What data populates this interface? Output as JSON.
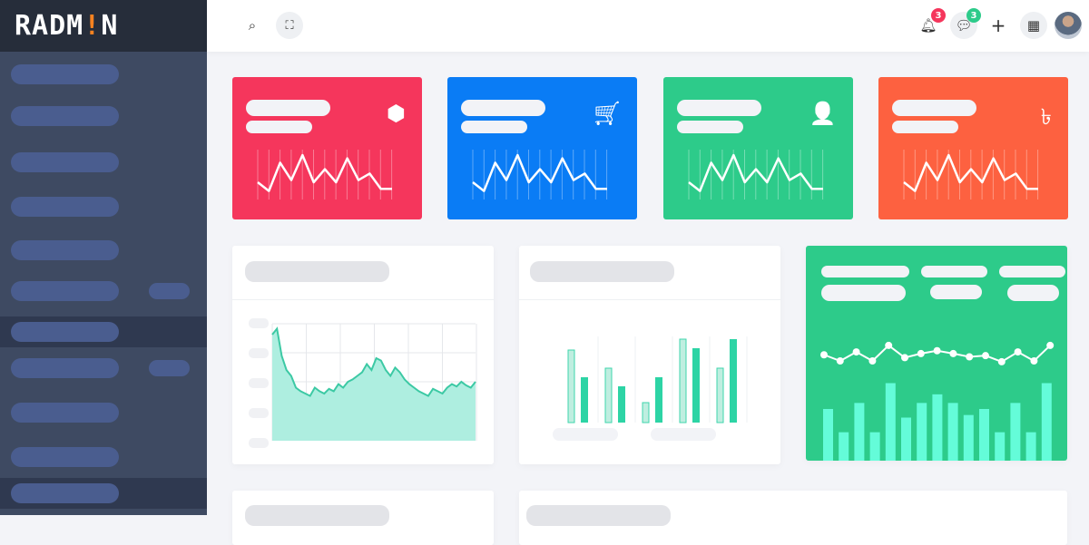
{
  "brand": {
    "logo_text_a": "RADM",
    "logo_text_b": "!",
    "logo_text_c": "N"
  },
  "header": {
    "notification_count": "3",
    "message_count": "3",
    "add_label": "+"
  },
  "colors": {
    "red": "#f5365c",
    "blue": "#0a7cf5",
    "green": "#2dcb8a",
    "orange": "#fd6140",
    "teal": "#2dd4a5",
    "mint": "#64fcd9"
  },
  "stat_cards": [
    {
      "icon": "box-icon",
      "color": "#f5365c",
      "glyph": "⬢"
    },
    {
      "icon": "cart-icon",
      "color": "#0a7cf5",
      "glyph": "🛒"
    },
    {
      "icon": "user-icon",
      "color": "#2dcb8a",
      "glyph": "👤"
    },
    {
      "icon": "taka-icon",
      "color": "#fd6140",
      "glyph": "৳"
    }
  ],
  "sparkline": [
    30,
    38,
    12,
    28,
    5,
    30,
    18,
    30,
    8,
    28,
    22,
    36,
    36
  ],
  "area_series": [
    90,
    95,
    72,
    60,
    55,
    45,
    42,
    40,
    38,
    45,
    42,
    40,
    44,
    42,
    48,
    45,
    50,
    52,
    55,
    58,
    65,
    60,
    70,
    68,
    60,
    55,
    62,
    58,
    52,
    48,
    45,
    42,
    40,
    38,
    44,
    42,
    40,
    45,
    48,
    46,
    50,
    47,
    45,
    50
  ],
  "grouped_bars": {
    "a": [
      80,
      60,
      22,
      92,
      60
    ],
    "b": [
      50,
      40,
      50,
      82,
      92
    ]
  },
  "green_card": {
    "line": [
      55,
      40,
      62,
      40,
      78,
      48,
      58,
      65,
      58,
      50,
      53,
      38,
      62,
      40,
      78
    ],
    "bars": [
      60,
      33,
      67,
      33,
      90,
      50,
      67,
      77,
      67,
      53,
      60,
      33,
      67,
      33,
      90
    ]
  }
}
